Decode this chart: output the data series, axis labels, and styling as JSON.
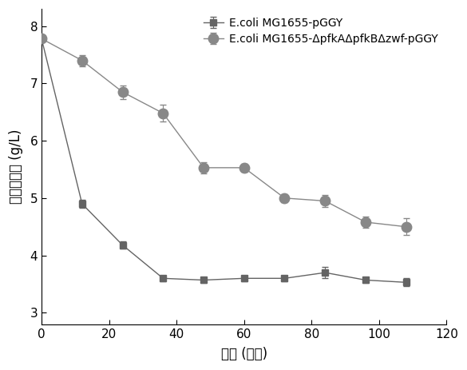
{
  "series1": {
    "label": "E.coli MG1655-pGGY",
    "x": [
      0,
      12,
      24,
      36,
      48,
      60,
      72,
      84,
      96,
      108
    ],
    "y": [
      7.78,
      4.9,
      4.18,
      3.6,
      3.57,
      3.6,
      3.6,
      3.7,
      3.57,
      3.53
    ],
    "yerr": [
      0.05,
      0.07,
      0.06,
      0.05,
      0.05,
      0.05,
      0.05,
      0.1,
      0.05,
      0.07
    ],
    "color": "#646464",
    "marker": "s",
    "markersize": 6
  },
  "series2": {
    "label": "E.coli MG1655-ΔpfkAΔpfkBΔzwf-pGGY",
    "x": [
      0,
      12,
      24,
      36,
      48,
      60,
      72,
      84,
      96,
      108
    ],
    "y": [
      7.78,
      7.4,
      6.85,
      6.48,
      5.53,
      5.53,
      5.0,
      4.95,
      4.58,
      4.5
    ],
    "yerr": [
      0.05,
      0.1,
      0.12,
      0.15,
      0.1,
      0.07,
      0.07,
      0.1,
      0.1,
      0.15
    ],
    "color": "#888888",
    "marker": "o",
    "markersize": 9
  },
  "xlabel": "时间 (小时)",
  "ylabel": "葡萄糖浓度 (g/L)",
  "xlim": [
    0,
    120
  ],
  "ylim": [
    2.8,
    8.3
  ],
  "xticks": [
    0,
    20,
    40,
    60,
    80,
    100,
    120
  ],
  "yticks": [
    3,
    4,
    5,
    6,
    7,
    8
  ],
  "figsize": [
    5.85,
    4.63
  ],
  "dpi": 100
}
